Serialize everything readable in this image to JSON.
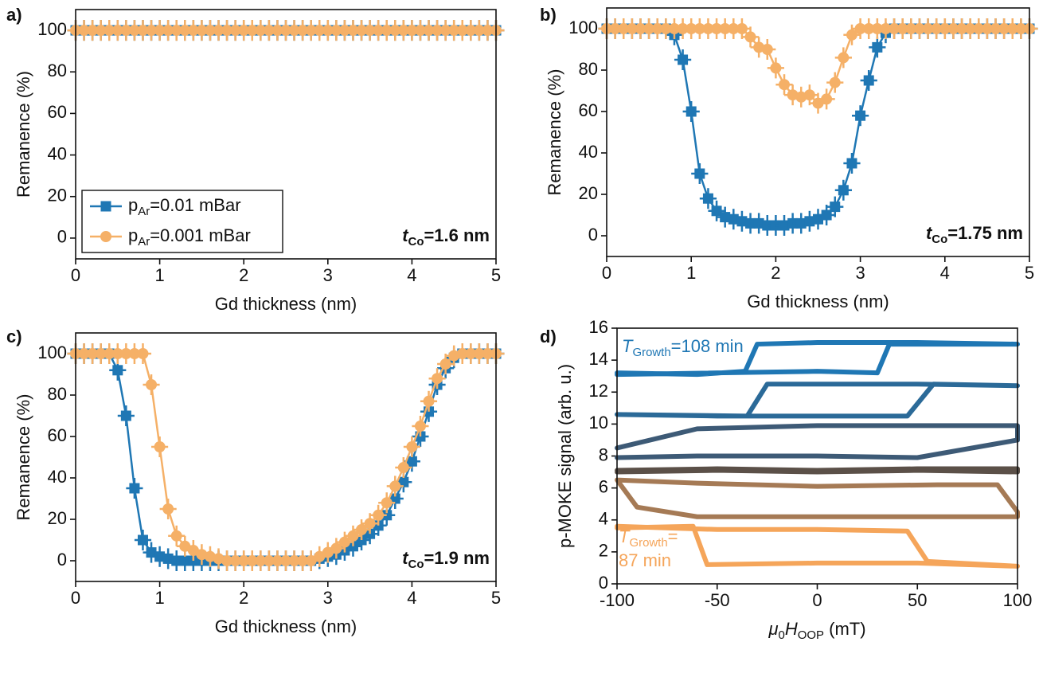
{
  "chart_data": [
    {
      "type": "errorbar-line",
      "panel": "a)",
      "xlabel": "Gd thickness (nm)",
      "ylabel": "Remanence (%)",
      "xlim": [
        0,
        5
      ],
      "ylim": [
        -10,
        110
      ],
      "xticks": [
        0,
        1,
        2,
        3,
        4,
        5
      ],
      "yticks": [
        0,
        20,
        40,
        60,
        80,
        100
      ],
      "legend": "lower left",
      "note": [
        {
          "text": "t",
          "italic": true
        },
        {
          "text": "Co",
          "sub": true
        },
        {
          "text": "=1.6 nm"
        }
      ],
      "x": [
        0,
        0.1,
        0.2,
        0.3,
        0.4,
        0.5,
        0.6,
        0.7,
        0.8,
        0.9,
        1,
        1.1,
        1.2,
        1.3,
        1.4,
        1.5,
        1.6,
        1.7,
        1.8,
        1.9,
        2,
        2.1,
        2.2,
        2.3,
        2.4,
        2.5,
        2.6,
        2.7,
        2.8,
        2.9,
        3,
        3.1,
        3.2,
        3.3,
        3.4,
        3.5,
        3.6,
        3.7,
        3.8,
        3.9,
        4,
        4.1,
        4.2,
        4.3,
        4.4,
        4.5,
        4.6,
        4.7,
        4.8,
        4.9,
        5
      ],
      "series": [
        {
          "name": [
            {
              "text": "p"
            },
            {
              "text": "Ar",
              "sub": true
            },
            {
              "text": "=0.01 mBar"
            }
          ],
          "color": "#1f77b4",
          "marker": "square",
          "xerr": 0.1,
          "yerr": 5,
          "values": [
            100,
            100,
            100,
            100,
            100,
            100,
            100,
            100,
            100,
            100,
            100,
            100,
            100,
            100,
            100,
            100,
            100,
            100,
            100,
            100,
            100,
            100,
            100,
            100,
            100,
            100,
            100,
            100,
            100,
            100,
            100,
            100,
            100,
            100,
            100,
            100,
            100,
            100,
            100,
            100,
            100,
            100,
            100,
            100,
            100,
            100,
            100,
            100,
            100,
            100,
            100
          ]
        },
        {
          "name": [
            {
              "text": "p"
            },
            {
              "text": "Ar",
              "sub": true
            },
            {
              "text": "=0.001 mBar"
            }
          ],
          "color": "#f5b067",
          "marker": "circle",
          "xerr": 0.1,
          "yerr": 5,
          "values": [
            100,
            100,
            100,
            100,
            100,
            100,
            100,
            100,
            100,
            100,
            100,
            100,
            100,
            100,
            100,
            100,
            100,
            100,
            100,
            100,
            100,
            100,
            100,
            100,
            100,
            100,
            100,
            100,
            100,
            100,
            100,
            100,
            100,
            100,
            100,
            100,
            100,
            100,
            100,
            100,
            100,
            100,
            100,
            100,
            100,
            100,
            100,
            100,
            100,
            100,
            100
          ]
        }
      ]
    },
    {
      "type": "errorbar-line",
      "panel": "b)",
      "xlabel": "Gd thickness (nm)",
      "ylabel": "Remanence (%)",
      "xlim": [
        0,
        5
      ],
      "ylim": [
        -10,
        110
      ],
      "xticks": [
        0,
        1,
        2,
        3,
        4,
        5
      ],
      "yticks": [
        0,
        20,
        40,
        60,
        80,
        100
      ],
      "note": [
        {
          "text": "t",
          "italic": true
        },
        {
          "text": "Co",
          "sub": true
        },
        {
          "text": "=1.75 nm"
        }
      ],
      "x": [
        0,
        0.1,
        0.2,
        0.3,
        0.4,
        0.5,
        0.6,
        0.7,
        0.8,
        0.9,
        1,
        1.1,
        1.2,
        1.3,
        1.4,
        1.5,
        1.6,
        1.7,
        1.8,
        1.9,
        2,
        2.1,
        2.2,
        2.3,
        2.4,
        2.5,
        2.6,
        2.7,
        2.8,
        2.9,
        3,
        3.1,
        3.2,
        3.3,
        3.4,
        3.5,
        3.6,
        3.7,
        3.8,
        3.9,
        4,
        4.1,
        4.2,
        4.3,
        4.4,
        4.5,
        4.6,
        4.7,
        4.8,
        4.9,
        5
      ],
      "series": [
        {
          "color": "#1f77b4",
          "marker": "square",
          "xerr": 0.1,
          "yerr": 5,
          "values": [
            100,
            100,
            100,
            100,
            100,
            100,
            100,
            100,
            97,
            85,
            60,
            30,
            18,
            12,
            9,
            8,
            7,
            6,
            6,
            5,
            5,
            5,
            6,
            6,
            7,
            8,
            10,
            14,
            22,
            35,
            58,
            75,
            91,
            98,
            100,
            100,
            100,
            100,
            100,
            100,
            100,
            100,
            100,
            100,
            100,
            100,
            100,
            100,
            100,
            100,
            100
          ]
        },
        {
          "color": "#f5b067",
          "marker": "circle",
          "xerr": 0.1,
          "yerr": 5,
          "values": [
            100,
            100,
            100,
            100,
            100,
            100,
            100,
            100,
            100,
            100,
            100,
            100,
            100,
            100,
            100,
            100,
            100,
            96,
            91,
            90,
            81,
            73,
            68,
            67,
            68,
            64,
            66,
            74,
            86,
            97,
            100,
            100,
            100,
            100,
            100,
            100,
            100,
            100,
            100,
            100,
            100,
            100,
            100,
            100,
            100,
            100,
            100,
            100,
            100,
            100,
            100
          ]
        }
      ]
    },
    {
      "type": "errorbar-line",
      "panel": "c)",
      "xlabel": "Gd thickness (nm)",
      "ylabel": "Remanence (%)",
      "xlim": [
        0,
        5
      ],
      "ylim": [
        -10,
        110
      ],
      "xticks": [
        0,
        1,
        2,
        3,
        4,
        5
      ],
      "yticks": [
        0,
        20,
        40,
        60,
        80,
        100
      ],
      "note": [
        {
          "text": "t",
          "italic": true
        },
        {
          "text": "Co",
          "sub": true
        },
        {
          "text": "=1.9 nm"
        }
      ],
      "x": [
        0,
        0.1,
        0.2,
        0.3,
        0.4,
        0.5,
        0.6,
        0.7,
        0.8,
        0.9,
        1,
        1.1,
        1.2,
        1.3,
        1.4,
        1.5,
        1.6,
        1.7,
        1.8,
        1.9,
        2,
        2.1,
        2.2,
        2.3,
        2.4,
        2.5,
        2.6,
        2.7,
        2.8,
        2.9,
        3,
        3.1,
        3.2,
        3.3,
        3.4,
        3.5,
        3.6,
        3.7,
        3.8,
        3.9,
        4,
        4.1,
        4.2,
        4.3,
        4.4,
        4.5,
        4.6,
        4.7,
        4.8,
        4.9,
        5
      ],
      "series": [
        {
          "color": "#1f77b4",
          "marker": "square",
          "xerr": 0.1,
          "yerr": 5,
          "values": [
            100,
            100,
            100,
            100,
            100,
            92,
            70,
            35,
            10,
            4,
            2,
            1,
            0,
            0,
            0,
            0,
            0,
            0,
            0,
            0,
            0,
            0,
            0,
            0,
            0,
            0,
            0,
            0,
            0,
            1,
            2,
            3,
            5,
            7,
            10,
            13,
            17,
            22,
            30,
            38,
            48,
            60,
            72,
            85,
            93,
            98,
            100,
            100,
            100,
            100,
            100
          ]
        },
        {
          "color": "#f5b067",
          "marker": "circle",
          "xerr": 0.1,
          "yerr": 5,
          "values": [
            100,
            100,
            100,
            100,
            100,
            100,
            100,
            100,
            100,
            85,
            55,
            25,
            12,
            7,
            5,
            3,
            2,
            1,
            0,
            0,
            0,
            0,
            0,
            0,
            0,
            0,
            0,
            0,
            0,
            2,
            4,
            6,
            9,
            12,
            15,
            18,
            22,
            28,
            36,
            45,
            55,
            65,
            77,
            88,
            95,
            99,
            100,
            100,
            100,
            100,
            100
          ]
        }
      ]
    },
    {
      "type": "line",
      "panel": "d)",
      "xlabel": [
        {
          "text": "μ",
          "italic": true
        },
        {
          "text": "0",
          "sub": true
        },
        {
          "text": "H",
          "italic": true
        },
        {
          "text": "OOP",
          "sub": true
        },
        {
          "text": " (mT)"
        }
      ],
      "ylabel": "p-MOKE signal (arb. u.)",
      "xlim": [
        -100,
        100
      ],
      "ylim": [
        0,
        16
      ],
      "xticks": [
        -100,
        -50,
        0,
        50,
        100
      ],
      "yticks": [
        0,
        2,
        4,
        6,
        8,
        10,
        12,
        14,
        16
      ],
      "annotations": [
        {
          "color": "#1f77b4",
          "lines": [
            [
              {
                "text": "T",
                "italic": true
              },
              {
                "text": "Growth",
                "sub": true
              },
              {
                "text": "=108 min"
              }
            ]
          ]
        },
        {
          "color": "#f5a55a",
          "lines": [
            [
              {
                "text": "T",
                "italic": true
              },
              {
                "text": "Growth",
                "sub": true
              },
              {
                "text": "="
              }
            ],
            [
              {
                "text": "87 min"
              }
            ]
          ]
        }
      ],
      "series": [
        {
          "color": "#1f77b4",
          "x": [
            -100,
            -50,
            0,
            30,
            36,
            50,
            100,
            100,
            50,
            0,
            -30,
            -36,
            -60,
            -100
          ],
          "values": [
            13.1,
            13.2,
            13.3,
            13.2,
            15,
            15,
            15,
            15,
            15.1,
            15.1,
            15,
            13.3,
            13.1,
            13.2
          ]
        },
        {
          "color": "#2b6a98",
          "x": [
            -100,
            -50,
            0,
            45,
            58,
            100,
            100,
            50,
            0,
            -25,
            -35,
            -100
          ],
          "values": [
            10.6,
            10.5,
            10.5,
            10.5,
            12.5,
            12.4,
            12.4,
            12.5,
            12.5,
            12.5,
            10.5,
            10.6
          ]
        },
        {
          "color": "#3d5a76",
          "x": [
            -100,
            -60,
            0,
            50,
            100,
            100,
            50,
            0,
            -60,
            -100
          ],
          "values": [
            7.9,
            8,
            8,
            7.9,
            9,
            9.9,
            9.9,
            9.9,
            9.7,
            8.5
          ]
        },
        {
          "color": "#5b5048",
          "x": [
            -100,
            -50,
            0,
            50,
            100,
            100,
            50,
            0,
            -50,
            -100
          ],
          "values": [
            7,
            7.1,
            7,
            7.1,
            7,
            7.2,
            7.2,
            7.1,
            7.2,
            7.1
          ]
        },
        {
          "color": "#a57a55",
          "x": [
            -100,
            -60,
            0,
            60,
            90,
            100,
            100,
            50,
            0,
            -60,
            -90,
            -100
          ],
          "values": [
            6.5,
            6.3,
            6.1,
            6.2,
            6.2,
            4.5,
            4.2,
            4.2,
            4.2,
            4.2,
            4.8,
            6.5
          ]
        },
        {
          "color": "#f5a55a",
          "x": [
            -100,
            -50,
            0,
            45,
            55,
            100,
            100,
            50,
            0,
            -55,
            -62,
            -100
          ],
          "values": [
            3.6,
            3.4,
            3.4,
            3.3,
            1.4,
            1.1,
            1.1,
            1.3,
            1.3,
            1.2,
            3.6,
            3.5
          ]
        }
      ]
    }
  ]
}
